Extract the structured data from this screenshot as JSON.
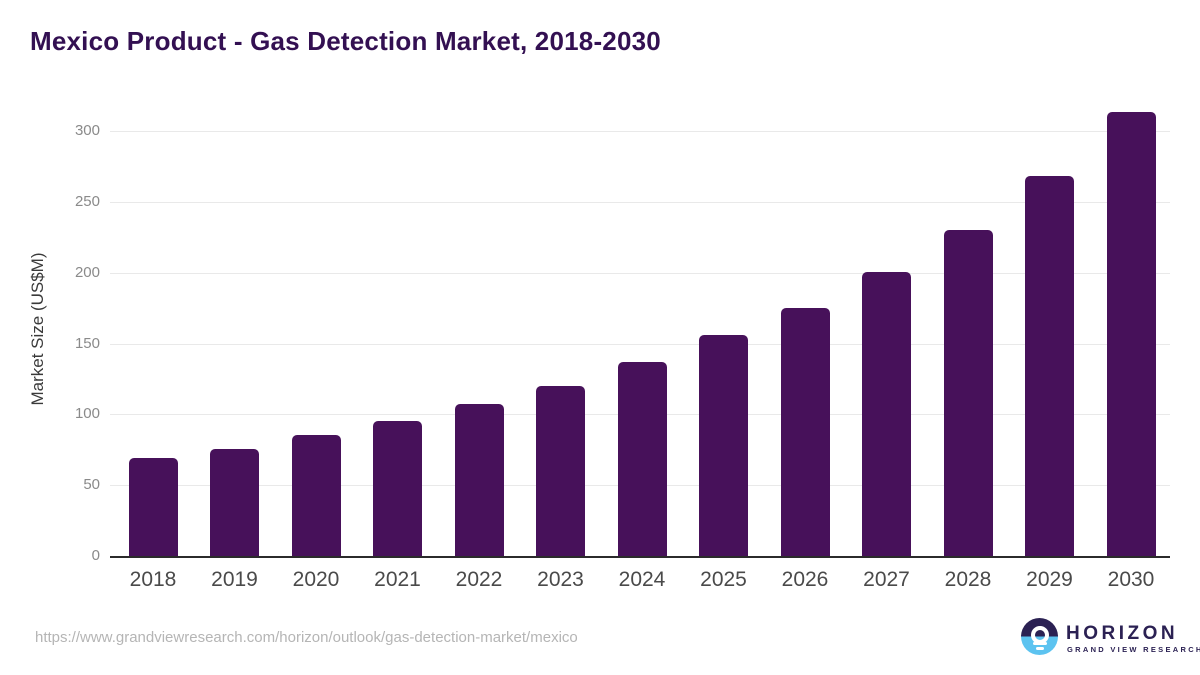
{
  "title": "Mexico Product - Gas Detection Market, 2018-2030",
  "footer": {
    "source_url": "https://www.grandviewresearch.com/horizon/outlook/gas-detection-market/mexico"
  },
  "logo": {
    "wordmark": "HORIZON",
    "subtitle": "GRAND VIEW RESEARCH",
    "navy": "#2b2153",
    "blue": "#5cc3f0"
  },
  "colors": {
    "bar": "#47115A",
    "title": "#331052",
    "axis_label": "#3a3a3a",
    "y_tick": "#8a8a8a",
    "x_tick": "#4a4a4a",
    "gridline": "#e9e9e9",
    "baseline": "#2b2b2b",
    "url_text": "#b5b5b5"
  },
  "chart_data": {
    "type": "bar",
    "title": "Mexico Product - Gas Detection Market, 2018-2030",
    "categories": [
      "2018",
      "2019",
      "2020",
      "2021",
      "2022",
      "2023",
      "2024",
      "2025",
      "2026",
      "2027",
      "2028",
      "2029",
      "2030"
    ],
    "values": [
      70,
      76,
      86,
      96,
      108,
      121,
      138,
      157,
      176,
      201,
      231,
      269,
      314
    ],
    "xlabel": "",
    "ylabel": "Market Size (US$M)",
    "yticks": [
      0,
      50,
      100,
      150,
      200,
      250,
      300
    ],
    "ylim": [
      0,
      322
    ],
    "grid": true,
    "legend": "none",
    "bar_color": "#47115A"
  }
}
